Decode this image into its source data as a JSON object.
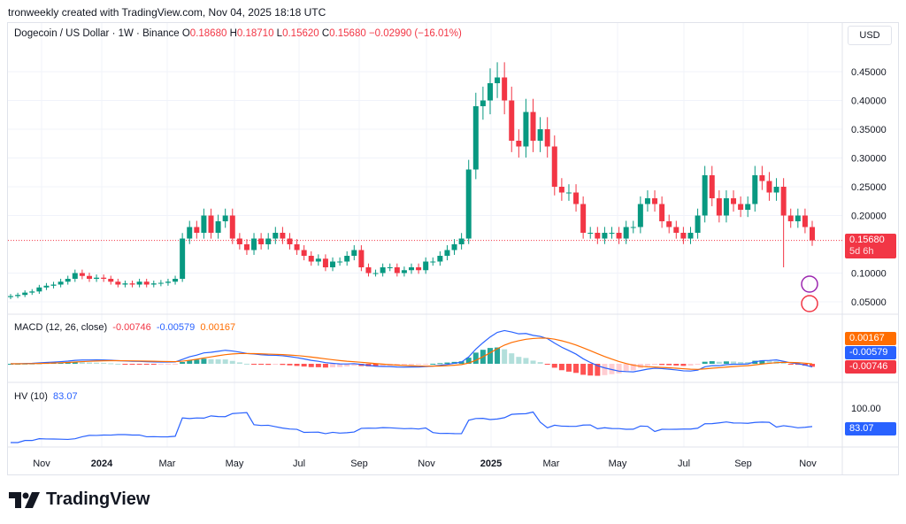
{
  "credit": "tronweekly created with TradingView.com, Nov 04, 2025 18:18 UTC",
  "legend": {
    "symbol": "Dogecoin / US Dollar · 1W · Binance",
    "o_label": "O",
    "o": "0.18680",
    "h_label": "H",
    "h": "0.18710",
    "l_label": "L",
    "l": "0.15620",
    "c_label": "C",
    "c": "0.15680",
    "change": "−0.02990 (−16.01%)"
  },
  "currency": "USD",
  "price_axis": [
    "0.45000",
    "0.40000",
    "0.35000",
    "0.30000",
    "0.25000",
    "0.20000",
    "0.10000",
    "0.05000"
  ],
  "last_price": {
    "value": "0.15680",
    "countdown": "5d 6h"
  },
  "macd": {
    "label": "MACD (12, 26, close)",
    "hist": "-0.00746",
    "macd": "-0.00579",
    "signal": "0.00167"
  },
  "hv": {
    "label": "HV (10)",
    "value": "83.07",
    "axis": "100.00"
  },
  "time_axis": [
    "Nov",
    "2024",
    "Mar",
    "May",
    "Jul",
    "Sep",
    "Nov",
    "2025",
    "Mar",
    "May",
    "Jul",
    "Sep",
    "Nov"
  ],
  "logo": "TradingView",
  "colors": {
    "up": "#089981",
    "down": "#f23645",
    "macd": "#2962ff",
    "signal": "#ff6d00",
    "hv": "#2962ff"
  },
  "chart_data": {
    "type": "candlestick",
    "interval": "1W",
    "weekly_closes": [
      0.06,
      0.062,
      0.066,
      0.068,
      0.075,
      0.078,
      0.08,
      0.085,
      0.09,
      0.1,
      0.095,
      0.09,
      0.092,
      0.09,
      0.085,
      0.08,
      0.082,
      0.08,
      0.085,
      0.08,
      0.082,
      0.083,
      0.085,
      0.09,
      0.16,
      0.18,
      0.17,
      0.2,
      0.17,
      0.19,
      0.2,
      0.16,
      0.15,
      0.14,
      0.16,
      0.15,
      0.16,
      0.17,
      0.16,
      0.15,
      0.14,
      0.13,
      0.12,
      0.125,
      0.11,
      0.12,
      0.12,
      0.13,
      0.14,
      0.11,
      0.1,
      0.1,
      0.11,
      0.11,
      0.1,
      0.105,
      0.11,
      0.105,
      0.12,
      0.12,
      0.13,
      0.14,
      0.15,
      0.16,
      0.28,
      0.39,
      0.4,
      0.43,
      0.44,
      0.4,
      0.33,
      0.32,
      0.38,
      0.33,
      0.35,
      0.32,
      0.25,
      0.24,
      0.24,
      0.22,
      0.17,
      0.17,
      0.16,
      0.17,
      0.17,
      0.16,
      0.18,
      0.18,
      0.22,
      0.23,
      0.22,
      0.19,
      0.18,
      0.17,
      0.16,
      0.17,
      0.2,
      0.27,
      0.23,
      0.2,
      0.23,
      0.22,
      0.21,
      0.22,
      0.27,
      0.26,
      0.24,
      0.25,
      0.2,
      0.19,
      0.2,
      0.18,
      0.1568
    ],
    "ylim": [
      0.02,
      0.5
    ]
  }
}
